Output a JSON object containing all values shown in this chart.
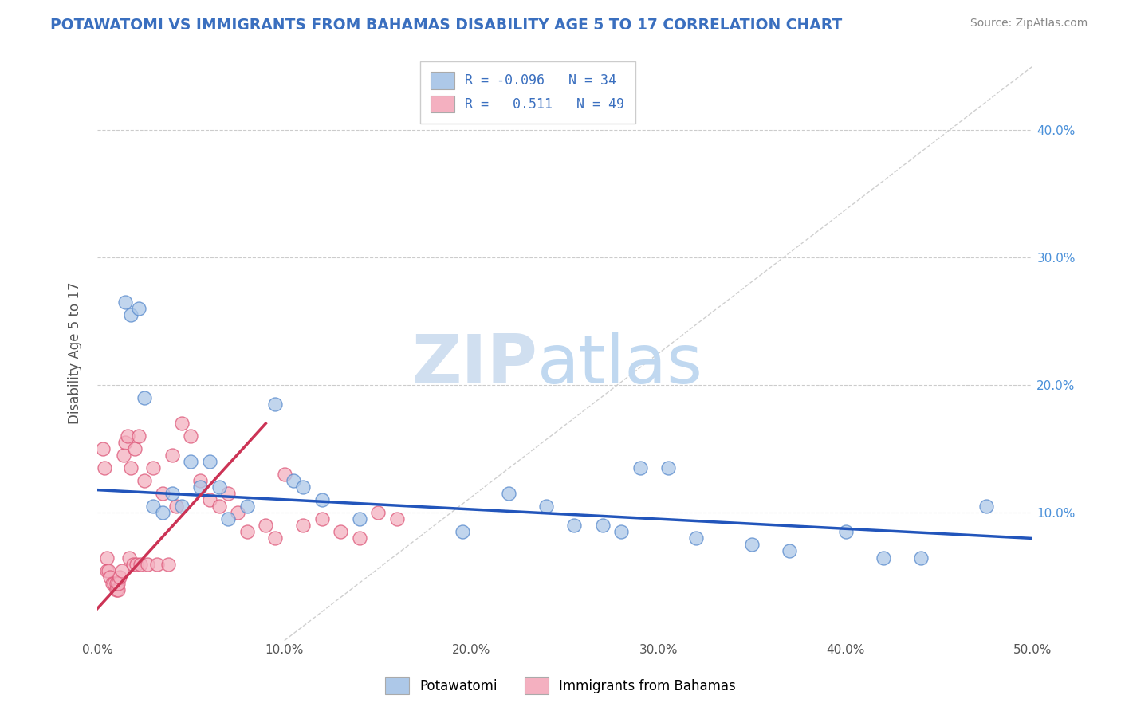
{
  "title": "POTAWATOMI VS IMMIGRANTS FROM BAHAMAS DISABILITY AGE 5 TO 17 CORRELATION CHART",
  "source_text": "Source: ZipAtlas.com",
  "ylabel": "Disability Age 5 to 17",
  "xlim": [
    0.0,
    50.0
  ],
  "ylim": [
    0.0,
    45.0
  ],
  "x_tick_labels": [
    "0.0%",
    "10.0%",
    "20.0%",
    "30.0%",
    "40.0%",
    "50.0%"
  ],
  "x_tick_values": [
    0,
    10,
    20,
    30,
    40,
    50
  ],
  "y_tick_labels": [
    "10.0%",
    "20.0%",
    "30.0%",
    "40.0%"
  ],
  "y_tick_values": [
    10,
    20,
    30,
    40
  ],
  "series1_label": "Potawatomi",
  "series2_label": "Immigrants from Bahamas",
  "series1_color": "#adc8e8",
  "series2_color": "#f4b0c0",
  "series1_edge_color": "#5588cc",
  "series2_edge_color": "#dd5577",
  "line1_color": "#2255bb",
  "line2_color": "#cc3355",
  "diag_line_color": "#bbbbbb",
  "background_color": "#ffffff",
  "grid_color": "#cccccc",
  "title_color": "#3a6fbf",
  "source_color": "#888888",
  "potawatomi_x": [
    1.5,
    1.8,
    2.2,
    2.5,
    3.0,
    3.5,
    4.0,
    4.5,
    5.0,
    5.5,
    6.0,
    6.5,
    7.0,
    8.0,
    9.5,
    10.5,
    11.0,
    12.0,
    14.0,
    19.5,
    22.0,
    24.0,
    25.5,
    27.0,
    28.0,
    29.0,
    30.5,
    32.0,
    35.0,
    37.0,
    40.0,
    42.0,
    44.0,
    47.5
  ],
  "potawatomi_y": [
    26.5,
    25.5,
    26.0,
    19.0,
    10.5,
    10.0,
    11.5,
    10.5,
    14.0,
    12.0,
    14.0,
    12.0,
    9.5,
    10.5,
    18.5,
    12.5,
    12.0,
    11.0,
    9.5,
    8.5,
    11.5,
    10.5,
    9.0,
    9.0,
    8.5,
    13.5,
    13.5,
    8.0,
    7.5,
    7.0,
    8.5,
    6.5,
    6.5,
    10.5
  ],
  "bahamas_x": [
    0.3,
    0.4,
    0.5,
    0.5,
    0.6,
    0.7,
    0.8,
    0.9,
    1.0,
    1.0,
    1.1,
    1.1,
    1.2,
    1.3,
    1.4,
    1.5,
    1.6,
    1.7,
    1.8,
    1.9,
    2.0,
    2.1,
    2.2,
    2.3,
    2.5,
    2.7,
    3.0,
    3.2,
    3.5,
    3.8,
    4.0,
    4.2,
    4.5,
    5.0,
    5.5,
    6.0,
    6.5,
    7.0,
    7.5,
    8.0,
    9.0,
    9.5,
    10.0,
    11.0,
    12.0,
    13.0,
    14.0,
    15.0,
    16.0
  ],
  "bahamas_y": [
    15.0,
    13.5,
    5.5,
    6.5,
    5.5,
    5.0,
    4.5,
    4.5,
    4.5,
    4.0,
    4.0,
    4.5,
    5.0,
    5.5,
    14.5,
    15.5,
    16.0,
    6.5,
    13.5,
    6.0,
    15.0,
    6.0,
    16.0,
    6.0,
    12.5,
    6.0,
    13.5,
    6.0,
    11.5,
    6.0,
    14.5,
    10.5,
    17.0,
    16.0,
    12.5,
    11.0,
    10.5,
    11.5,
    10.0,
    8.5,
    9.0,
    8.0,
    13.0,
    9.0,
    9.5,
    8.5,
    8.0,
    10.0,
    9.5
  ],
  "line1_x_start": 0,
  "line1_x_end": 50,
  "line1_y_start": 11.8,
  "line1_y_end": 8.0,
  "line2_x_start": 0,
  "line2_x_end": 9.0,
  "line2_y_start": 2.5,
  "line2_y_end": 17.0,
  "diag_x_start": 10,
  "diag_x_end": 50,
  "diag_y_start": 0,
  "diag_y_end": 45,
  "watermark_zip_text": "ZIP",
  "watermark_atlas_text": "atlas",
  "watermark_zip_color": "#d0dff0",
  "watermark_atlas_color": "#c0d8f0"
}
